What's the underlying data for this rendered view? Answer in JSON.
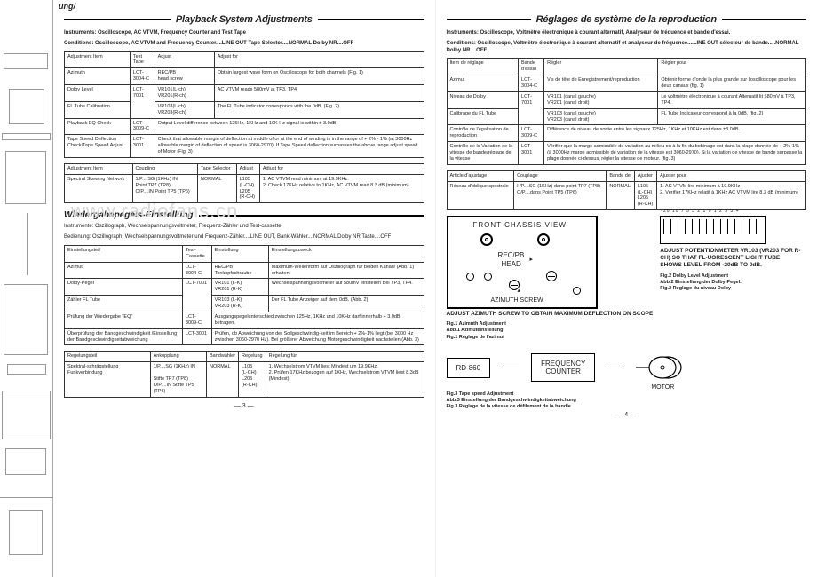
{
  "toptab": "ung/",
  "left": {
    "title": "Playback System Adjustments",
    "instruments": "Instruments: Oscilloscope, AC VTVM, Frequency Counter and Test Tape",
    "conditions": "Conditions: Oscilloscope, AC VTVM and Frequency Counter....LINE OUT Tape Selector....NORMAL Dolby NR....OFF",
    "t1": {
      "head": [
        "Adjustment Item",
        "Test Tape",
        "Adjust",
        "Adjust for"
      ],
      "rows": [
        [
          "Azimuth",
          "LCT-3004-C",
          "REC/PB\nhead screw",
          "Obtain largest wave form on Oscilloscope for both channels (Fig. 1)"
        ],
        [
          "Dolby Level",
          "LCT-7001",
          "VR101(L-ch)\nVR201(R-ch)",
          "AC VTVM reads 580mV at TP3, TP4"
        ],
        [
          "FL Tube Calibration",
          "",
          "VR103(L-ch)\nVR203(R-ch)",
          "The FL Tube indicator corresponds with the 0dB. (Fig. 2)"
        ],
        [
          "Playback EQ Check",
          "LCT-3009-C",
          "",
          "Output Level difference between 125Hz, 1KHz and 10K Hz signal is within ± 3.0dB"
        ],
        [
          "Tape Speed Deflection Check/Tape Speed Adjust",
          "LCT-3001",
          "",
          "Check that allowable margin of deflection at middle of or at the end of winding is in the range of + 2% - 1% (at 3000Hz allowable margin of deflection of speed is 3060-2970). If Tape Speed deflection surpasses the above range adjust speed of Motor (Fig. 3)"
        ]
      ]
    },
    "t2": {
      "head": [
        "Adjustment Item",
        "Coupling",
        "Tape Selector",
        "Adjust",
        "Adjust for"
      ],
      "rows": [
        [
          "Spectral Skewing Network",
          "1/P....SG (1KHz) IN\nPoint TP7 (TP8)\nO/P....IN Point TP5 (TP6)",
          "NORMAL",
          "L105\n(L-CH)\nL205\n(R-CH)",
          "1. AC VTVM read minimum at 19.9KHz.\n2. Check 17KHz relative to 1KHz, AC VTVM read 8.3 dB (minimum)"
        ]
      ]
    },
    "watermark": "www.radiofans.cn",
    "h2": "Wiedergabepegels-Einstellung",
    "instr2a": "Instrumente: Oszillograph, Wechselspannungsvoltmeter, Frequenz-Zähler und Test-cassette",
    "instr2b": "Bedienung: Oszillograph, Wechselspannungsvoltmeter und Frequenz-Zähler....LINE OUT, Bank-Wähler....NORMAL Dolby NR Taste....OFF",
    "t3": {
      "head": [
        "Einstellungsteil",
        "Test-Cassette",
        "Einstellung",
        "Einstellungszweck"
      ],
      "rows": [
        [
          "Azimut",
          "LCT-3004-C",
          "REC/PB\nTonkopfschraube",
          "Maximum-Wellenform auf Oszillograph für beiden Kanäle (Abb. 1) erhalten."
        ],
        [
          "Dolby-Pegel",
          "LCT-7001",
          "VR101 (L-K)\nVR201 (R-K)",
          "Wechselspannungsvoltmeter auf 580mV einstellen Bei TP3, TP4."
        ],
        [
          "Zähler FL Tube",
          "",
          "VR103 (L-K)\nVR203 (R-K)",
          "Der FL Tube Anzeiger auf dem 0dB. (Abb. 2)"
        ],
        [
          "Prüfung der Wiedergabe \"EQ\"",
          "LCT-3009-C",
          "",
          "Ausgangspegelunterschied zwischen 125Hz, 1KHz und 10KHz darf innerhalb + 3.0dB betragen."
        ],
        [
          "Überprüfung der Bandgeschwindigkeit /Einstellung der Bandgeschwindigkeitabweichung",
          "LCT-3001",
          "",
          "Prüfen, ob Abweichung von der Sollgeschwindig-keit im Bereich + 2%-1% liegt (bei 3000 Hz zwischen 3060-2970 Hz). Bei größerer Abweichung Motorgeschwindigkeit nachstellen (Abb. 3)"
        ]
      ]
    },
    "t4": {
      "head": [
        "Regelungsteil",
        "Ankopplung",
        "Bandwähler",
        "Regelung",
        "Regelung für"
      ],
      "rows": [
        [
          "Spektral-schrägstellung Funkverbindung",
          "1/P....SG (1KHz) IN\n\nStifte TP7 (TP8)\nO/P....IN Stifte TP5 (TP6)",
          "NORMAL",
          "L105\n(L-CH)\nL205\n(R-CH)",
          "1. Wechselstrom VTVM liest Mindest um 19.9KHz.\n2. Prüfen 17KHz bezogen auf 1KHz, Wechselstrom VTVM liest 8.3dB (Mindest)."
        ]
      ]
    },
    "pgnum": "— 3 —"
  },
  "right": {
    "title": "Réglages de système de la reproduction",
    "instruments": "Instruments: Oscilloscope, Voltmètre électronique à courant alternatif, Analyseur de fréquence et bande d'essai.",
    "conditions": "Conditions: Oscilloscope, Voltmètre électronique à courant alternatif et analyseur de fréquence....LINE OUT sélecteur de bande.....NORMAL Dolby NR....OFF",
    "t1": {
      "head": [
        "Item de réglage",
        "Bande d'essai",
        "Régler",
        "Régler pour"
      ],
      "rows": [
        [
          "Azimut",
          "LCT-3004-C",
          "Vis de tête de Enregistrement/reproduction",
          "Obtenir forme d'onde la plus grande sur l'oscilloscope pour les deux canaux (fig. 1)"
        ],
        [
          "Niveau de Dolby",
          "LCT-7001",
          "VR101 (canal gauche)\nVR201 (canal droit)",
          "Le voltmètre électronique à courant Alternatif lit 580mV à TP3, TP4."
        ],
        [
          "Calibrage du FL Tube",
          "",
          "VR103 (canal gauche)\nVR203 (canal droit)",
          "FL Tube Indicateur correspond à la 0dB. (fig. 2)"
        ],
        [
          "Contrôle de l'égalisation de reproduction",
          "LCT-3009-C",
          "",
          "Différence de niveau de sortie entre les signaux 125Hz, 1KHz et 10KHz est dans ±3.0dB."
        ],
        [
          "Contrôle de la Variation de la vitesse de bande/réglage de la vitesse",
          "LCT-3001",
          "",
          "Vérifier que la marge admissible de variation au milieu ou à la fin du bobinage est dans la plage donnée de + 2%-1% (à 3000Hz marge admissible de variation de la vitesse est 3060-2970). Si la variation de vitesse de bande surpasse la plage donnée ci-dessus, régler la vitesse de moteur. (fig. 3)"
        ]
      ]
    },
    "t2": {
      "head": [
        "Article d'ajustage",
        "Couplage",
        "Bande de",
        "Ajuster",
        "Ajuster pour"
      ],
      "rows": [
        [
          "Réseau d'oblique spectrale",
          "I /P....SG (1KHz) dans point TP7 (TP8)\nO/P....dans Point TP5 (TP6)",
          "NORMAL",
          "L105\n(L-CH)\nL205\n(R-CH)",
          "1. AC VTVM lire minimum à 19.9KHz\n2. Vérifier 17KHz relatif à 1KHz AC VTVM lire 8.3 dB (minimum)"
        ]
      ]
    },
    "chassis": {
      "title": "FRONT CHASSIS VIEW",
      "recpb": "REC/PB",
      "head": "HEAD",
      "azscrew": "AZIMUTH SCREW",
      "cap1": "ADJUST AZIMUTH SCREW TO OBTAIN MAXIMUM DEFLECTION ON SCOPE",
      "fig1a": "Fig.1 Azimuth Adjustment",
      "fig1b": "Abb.1 Azimuteinstellung",
      "fig1c": "Fig.1 Réglage de l'azimut"
    },
    "meter": {
      "nums": "-20  10  7  5  3  2  1 0 1 2 3 5 +",
      "cap": "ADJUST POTENTIONMETER VR103 (VR203 FOR R-CH) SO THAT FL-UORESCENT LIGHT TUBE SHOWS LEVEL FROM -20dB TO 0dB.",
      "fig2a": "Fig.2 Dolby Level Adjustment",
      "fig2b": "Abb.2 Einstellung der Dolby-Pegel.",
      "fig2c": "Fig.2 Réglage du niveau Dolby"
    },
    "bottom": {
      "box1": "RD-860",
      "box2": "FREQUENCY\nCOUNTER",
      "motor": "MOTOR",
      "fig3a": "Fig.3 Tape speed Adjustment",
      "fig3b": "Abb.3 Einstellung der Bandgeschwindigkeitabweichung",
      "fig3c": "Fig.3 Réglage de la vitesse de défilement de la bandle"
    },
    "pgnum": "— 4 —"
  }
}
